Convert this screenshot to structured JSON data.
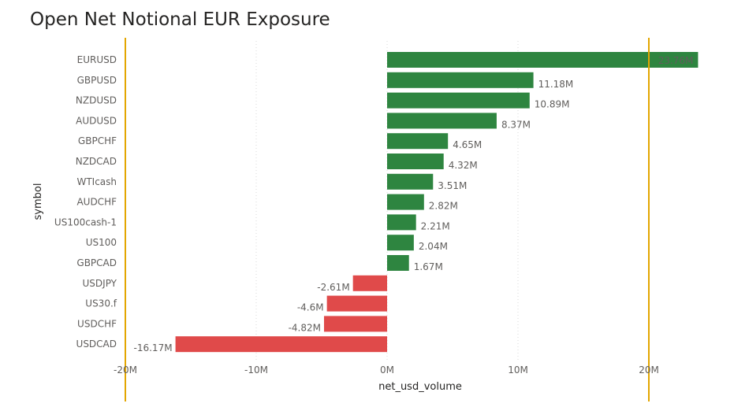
{
  "chart_data": {
    "type": "bar",
    "orientation": "horizontal",
    "title": "Open Net Notional EUR Exposure",
    "xlabel": "net_usd_volume",
    "ylabel": "symbol",
    "xlim": [
      -20,
      24
    ],
    "x_ticks": [
      -20,
      -10,
      0,
      10,
      20
    ],
    "x_tick_labels": [
      "-20M",
      "-10M",
      "0M",
      "10M",
      "20M"
    ],
    "grid": true,
    "categories": [
      "EURUSD",
      "GBPUSD",
      "NZDUSD",
      "AUDUSD",
      "GBPCHF",
      "NZDCAD",
      "WTIcash",
      "AUDCHF",
      "US100cash-1",
      "US100",
      "GBPCAD",
      "USDJPY",
      "US30.f",
      "USDCHF",
      "USDCAD"
    ],
    "values": [
      23.76,
      11.18,
      10.89,
      8.37,
      4.65,
      4.32,
      3.51,
      2.82,
      2.21,
      2.04,
      1.67,
      -2.61,
      -4.6,
      -4.82,
      -16.17
    ],
    "value_labels": [
      "23.76M",
      "11.18M",
      "10.89M",
      "8.37M",
      "4.65M",
      "4.32M",
      "3.51M",
      "2.82M",
      "2.21M",
      "2.04M",
      "1.67M",
      "-2.61M",
      "-4.6M",
      "-4.82M",
      "-16.17M"
    ],
    "reference_lines": [
      -20,
      20
    ],
    "colors": {
      "positive": "#2e8540",
      "negative": "#e04a4a",
      "reference": "#e3a600",
      "grid": "#d9d9d9"
    }
  }
}
